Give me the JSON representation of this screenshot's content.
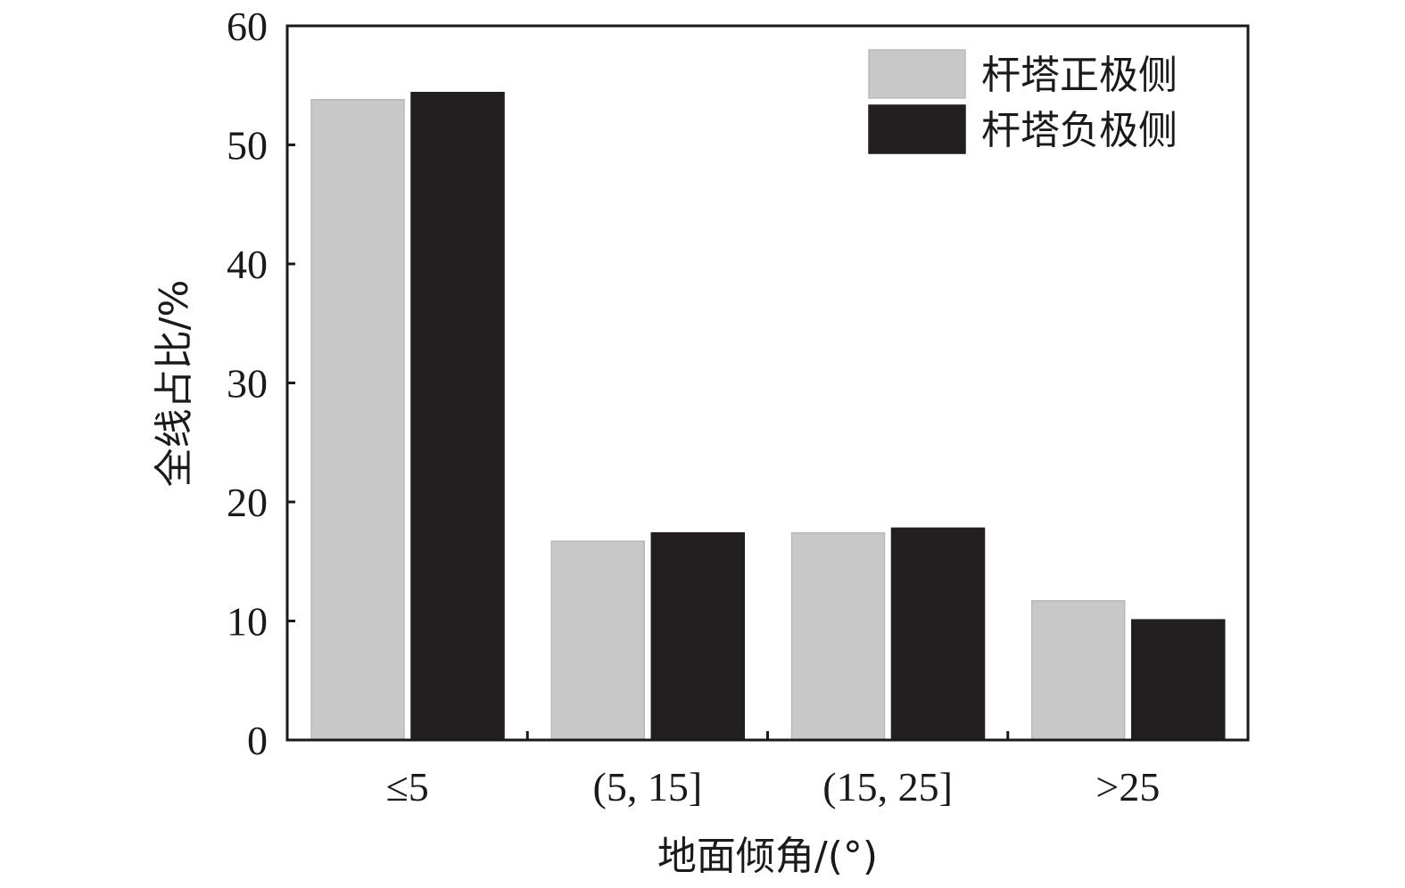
{
  "chart_data": {
    "type": "bar",
    "xlabel": "地面倾角/(°)",
    "ylabel": "全线占比/%",
    "categories": [
      "≤5",
      "(5, 15]",
      "(15, 25]",
      ">25"
    ],
    "series": [
      {
        "name": "杆塔正极侧",
        "values": [
          53.8,
          16.7,
          17.4,
          11.7
        ],
        "color": "#c8c8c8"
      },
      {
        "name": "杆塔负极侧",
        "values": [
          54.4,
          17.4,
          17.8,
          10.1
        ],
        "color": "#231f20"
      }
    ],
    "ylim": [
      0,
      60
    ],
    "yticks": [
      0,
      10,
      20,
      30,
      40,
      50,
      60
    ],
    "legend_position": "top-right",
    "grid": false
  }
}
